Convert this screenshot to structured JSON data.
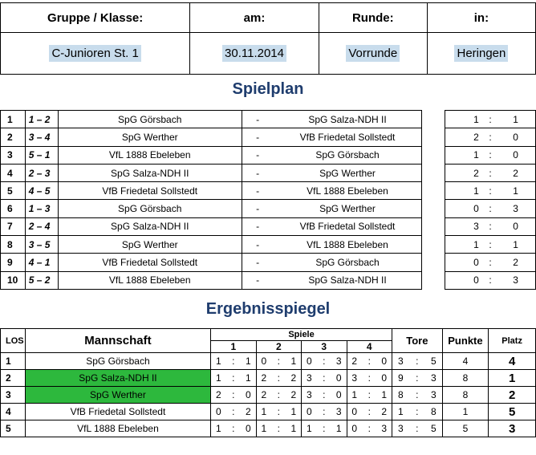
{
  "header": {
    "labels": [
      "Gruppe / Klasse:",
      "am:",
      "Runde:",
      "in:"
    ],
    "values": [
      "C-Junioren St. 1",
      "30.11.2014",
      "Vorrunde",
      "Heringen"
    ]
  },
  "spielplan_title": "Spielplan",
  "spielplan": [
    {
      "nr": "1",
      "pair": "1 – 2",
      "home": "SpG Görsbach",
      "sep": "-",
      "away": "SpG Salza-NDH II",
      "g1": "1",
      "colon": ":",
      "g2": "1"
    },
    {
      "nr": "2",
      "pair": "3 – 4",
      "home": "SpG Werther",
      "sep": "-",
      "away": "VfB Friedetal Sollstedt",
      "g1": "2",
      "colon": ":",
      "g2": "0"
    },
    {
      "nr": "3",
      "pair": "5 – 1",
      "home": "VfL 1888 Ebeleben",
      "sep": "-",
      "away": "SpG Görsbach",
      "g1": "1",
      "colon": ":",
      "g2": "0"
    },
    {
      "nr": "4",
      "pair": "2 – 3",
      "home": "SpG Salza-NDH II",
      "sep": "-",
      "away": "SpG Werther",
      "g1": "2",
      "colon": ":",
      "g2": "2"
    },
    {
      "nr": "5",
      "pair": "4 – 5",
      "home": "VfB Friedetal Sollstedt",
      "sep": "-",
      "away": "VfL 1888 Ebeleben",
      "g1": "1",
      "colon": ":",
      "g2": "1"
    },
    {
      "nr": "6",
      "pair": "1 – 3",
      "home": "SpG Görsbach",
      "sep": "-",
      "away": "SpG Werther",
      "g1": "0",
      "colon": ":",
      "g2": "3"
    },
    {
      "nr": "7",
      "pair": "2 – 4",
      "home": "SpG Salza-NDH II",
      "sep": "-",
      "away": "VfB Friedetal Sollstedt",
      "g1": "3",
      "colon": ":",
      "g2": "0"
    },
    {
      "nr": "8",
      "pair": "3 – 5",
      "home": "SpG Werther",
      "sep": "-",
      "away": "VfL 1888 Ebeleben",
      "g1": "1",
      "colon": ":",
      "g2": "1"
    },
    {
      "nr": "9",
      "pair": "4 – 1",
      "home": "VfB Friedetal Sollstedt",
      "sep": "-",
      "away": "SpG Görsbach",
      "g1": "0",
      "colon": ":",
      "g2": "2"
    },
    {
      "nr": "10",
      "pair": "5 – 2",
      "home": "VfL 1888 Ebeleben",
      "sep": "-",
      "away": "SpG Salza-NDH II",
      "g1": "0",
      "colon": ":",
      "g2": "3"
    }
  ],
  "ergebnis_title": "Ergebnisspiegel",
  "ergebnis_headers": {
    "los": "LOS",
    "team": "Mannschaft",
    "spiele": "Spiele",
    "games": [
      "1",
      "2",
      "3",
      "4"
    ],
    "tore": "Tore",
    "punkte": "Punkte",
    "platz": "Platz"
  },
  "highlight_color": "#2db83d",
  "ergebnis": [
    {
      "los": "1",
      "team": "SpG Görsbach",
      "highlight": false,
      "games": [
        [
          "1",
          ":",
          "1"
        ],
        [
          "0",
          ":",
          "1"
        ],
        [
          "0",
          ":",
          "3"
        ],
        [
          "2",
          ":",
          "0"
        ]
      ],
      "tore": [
        "3",
        ":",
        "5"
      ],
      "punkte": "4",
      "platz": "4"
    },
    {
      "los": "2",
      "team": "SpG Salza-NDH II",
      "highlight": true,
      "games": [
        [
          "1",
          ":",
          "1"
        ],
        [
          "2",
          ":",
          "2"
        ],
        [
          "3",
          ":",
          "0"
        ],
        [
          "3",
          ":",
          "0"
        ]
      ],
      "tore": [
        "9",
        ":",
        "3"
      ],
      "punkte": "8",
      "platz": "1"
    },
    {
      "los": "3",
      "team": "SpG Werther",
      "highlight": true,
      "games": [
        [
          "2",
          ":",
          "0"
        ],
        [
          "2",
          ":",
          "2"
        ],
        [
          "3",
          ":",
          "0"
        ],
        [
          "1",
          ":",
          "1"
        ]
      ],
      "tore": [
        "8",
        ":",
        "3"
      ],
      "punkte": "8",
      "platz": "2"
    },
    {
      "los": "4",
      "team": "VfB Friedetal Sollstedt",
      "highlight": false,
      "games": [
        [
          "0",
          ":",
          "2"
        ],
        [
          "1",
          ":",
          "1"
        ],
        [
          "0",
          ":",
          "3"
        ],
        [
          "0",
          ":",
          "2"
        ]
      ],
      "tore": [
        "1",
        ":",
        "8"
      ],
      "punkte": "1",
      "platz": "5"
    },
    {
      "los": "5",
      "team": "VfL 1888 Ebeleben",
      "highlight": false,
      "games": [
        [
          "1",
          ":",
          "0"
        ],
        [
          "1",
          ":",
          "1"
        ],
        [
          "1",
          ":",
          "1"
        ],
        [
          "0",
          ":",
          "3"
        ]
      ],
      "tore": [
        "3",
        ":",
        "5"
      ],
      "punkte": "5",
      "platz": "3"
    }
  ]
}
